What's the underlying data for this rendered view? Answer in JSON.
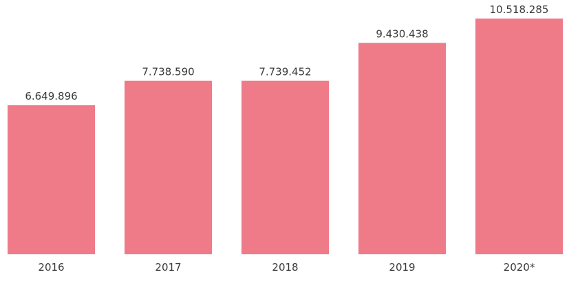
{
  "chart_data": {
    "type": "bar",
    "categories": [
      "2016",
      "2017",
      "2018",
      "2019",
      "2020*"
    ],
    "values": [
      6649896,
      7738590,
      7739452,
      9430438,
      10518285
    ],
    "data_labels": [
      "6.649.896",
      "7.738.590",
      "7.739.452",
      "9.430.438",
      "10.518.285"
    ],
    "title": "",
    "xlabel": "",
    "ylabel": "",
    "ylim": [
      0,
      11100000
    ],
    "grid": false,
    "legend": "none",
    "bar_color": "#ef7a88"
  }
}
